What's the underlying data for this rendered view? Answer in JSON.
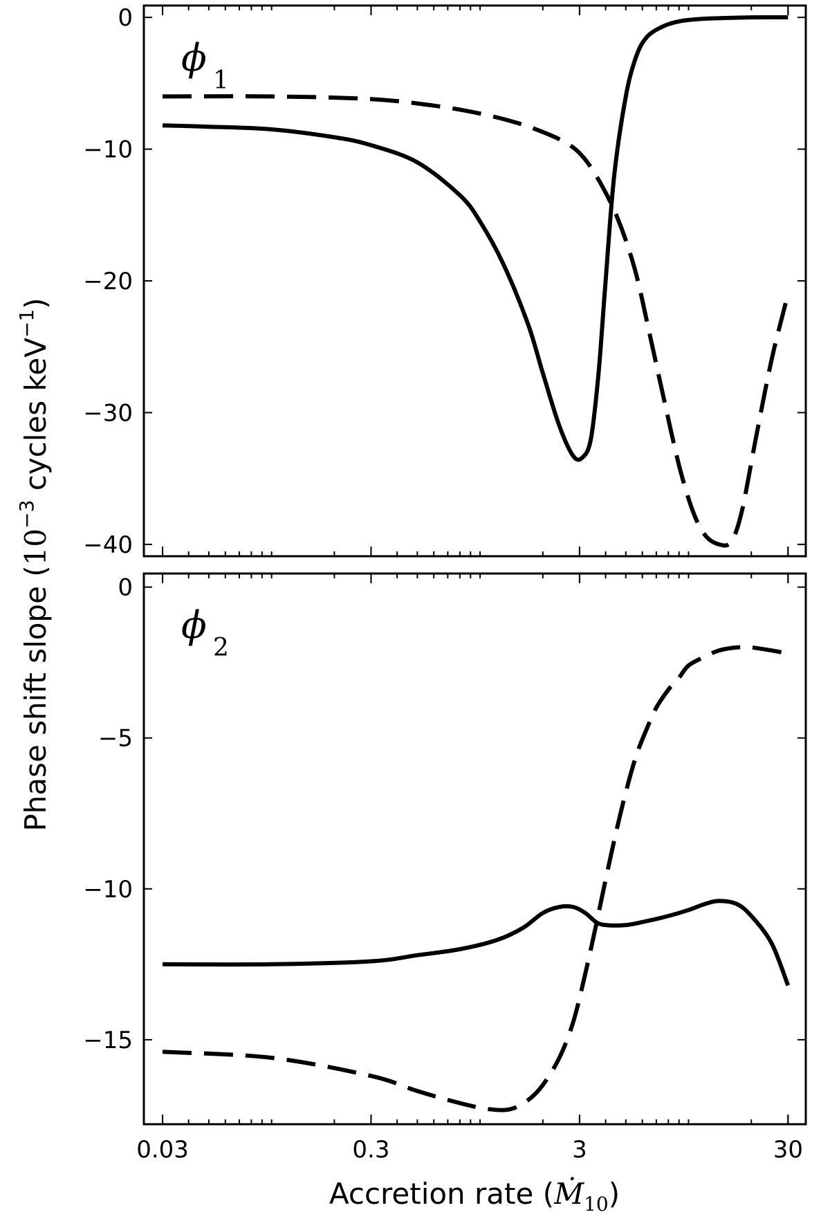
{
  "chart_data": {
    "type": "line",
    "shared_xlabel": {
      "text": "Accretion rate (",
      "symbol": "Ṁ",
      "subscript": "10",
      "close": ")"
    },
    "shared_ylabel": {
      "text": "Phase shift slope (",
      "power_base": "10",
      "power_exp": "−3",
      "units": " cycles keV",
      "units_exp": "−1",
      "close": ")"
    },
    "xscale": "log",
    "xlim": [
      0.0244,
      36.5
    ],
    "xticks": [
      0.03,
      0.3,
      3,
      30
    ],
    "xtick_labels": [
      "0.03",
      "0.3",
      "3",
      "30"
    ],
    "panels": [
      {
        "label": "ϕ",
        "label_sub": "1",
        "ylim": [
          -40.9,
          0.9
        ],
        "yticks": [
          0,
          -10,
          -20,
          -30,
          -40
        ],
        "ytick_labels": [
          "0",
          "−10",
          "−20",
          "−30",
          "−40"
        ],
        "series": [
          {
            "style": "solid",
            "x": [
              0.03,
              0.05,
              0.1,
              0.2,
              0.3,
              0.5,
              0.8,
              1.0,
              1.3,
              1.7,
              2.0,
              2.4,
              2.8,
              3.1,
              3.4,
              3.7,
              4.0,
              4.4,
              5.0,
              5.6,
              6.3,
              7.5,
              9.0,
              12.0,
              20.0,
              30.0
            ],
            "y": [
              -8.2,
              -8.3,
              -8.5,
              -9.1,
              -9.7,
              -11.0,
              -13.5,
              -15.5,
              -18.8,
              -23.3,
              -27.0,
              -31.0,
              -33.3,
              -33.4,
              -32.0,
              -27.0,
              -20.0,
              -12.0,
              -6.0,
              -3.0,
              -1.5,
              -0.7,
              -0.3,
              -0.1,
              0.0,
              0.0
            ]
          },
          {
            "style": "dashed",
            "x": [
              0.03,
              0.1,
              0.3,
              0.6,
              1.0,
              1.5,
              2.0,
              2.5,
              3.0,
              3.6,
              4.5,
              5.5,
              6.5,
              7.5,
              9.0,
              10.5,
              12.0,
              14.0,
              16.0,
              18.0,
              21.0,
              25.0,
              30.0
            ],
            "y": [
              -6.0,
              -6.0,
              -6.2,
              -6.7,
              -7.3,
              -8.0,
              -8.7,
              -9.4,
              -10.3,
              -12.0,
              -15.0,
              -19.0,
              -24.0,
              -28.5,
              -34.0,
              -37.5,
              -39.3,
              -40.0,
              -39.8,
              -37.5,
              -32.0,
              -26.0,
              -21.0
            ]
          }
        ]
      },
      {
        "label": "ϕ",
        "label_sub": "2",
        "ylim": [
          -17.8,
          0.45
        ],
        "yticks": [
          0,
          -5,
          -10,
          -15
        ],
        "ytick_labels": [
          "0",
          "−5",
          "−10",
          "−15"
        ],
        "series": [
          {
            "style": "solid",
            "x": [
              0.03,
              0.1,
              0.3,
              0.5,
              0.8,
              1.2,
              1.6,
              2.0,
              2.4,
              2.8,
              3.2,
              3.6,
              4.0,
              5.0,
              6.0,
              8.0,
              10.0,
              12.0,
              14.0,
              17.0,
              20.0,
              25.0,
              30.0
            ],
            "y": [
              -12.5,
              -12.5,
              -12.4,
              -12.2,
              -12.0,
              -11.7,
              -11.3,
              -10.8,
              -10.6,
              -10.6,
              -10.8,
              -11.1,
              -11.2,
              -11.2,
              -11.1,
              -10.9,
              -10.7,
              -10.5,
              -10.4,
              -10.5,
              -10.9,
              -11.8,
              -13.2
            ]
          },
          {
            "style": "dashed",
            "x": [
              0.03,
              0.1,
              0.3,
              0.5,
              0.8,
              1.1,
              1.4,
              1.7,
              2.0,
              2.4,
              2.8,
              3.2,
              3.6,
              4.0,
              4.5,
              5.0,
              5.6,
              6.3,
              7.0,
              8.0,
              9.0,
              10.0,
              12.0,
              14.0,
              17.0,
              20.0,
              25.0,
              30.0
            ],
            "y": [
              -15.4,
              -15.6,
              -16.2,
              -16.7,
              -17.1,
              -17.3,
              -17.3,
              -17.0,
              -16.5,
              -15.6,
              -14.4,
              -12.8,
              -11.2,
              -9.7,
              -8.1,
              -6.8,
              -5.6,
              -4.7,
              -4.0,
              -3.4,
              -3.0,
              -2.6,
              -2.3,
              -2.1,
              -2.0,
              -2.0,
              -2.1,
              -2.2
            ]
          }
        ]
      }
    ]
  }
}
